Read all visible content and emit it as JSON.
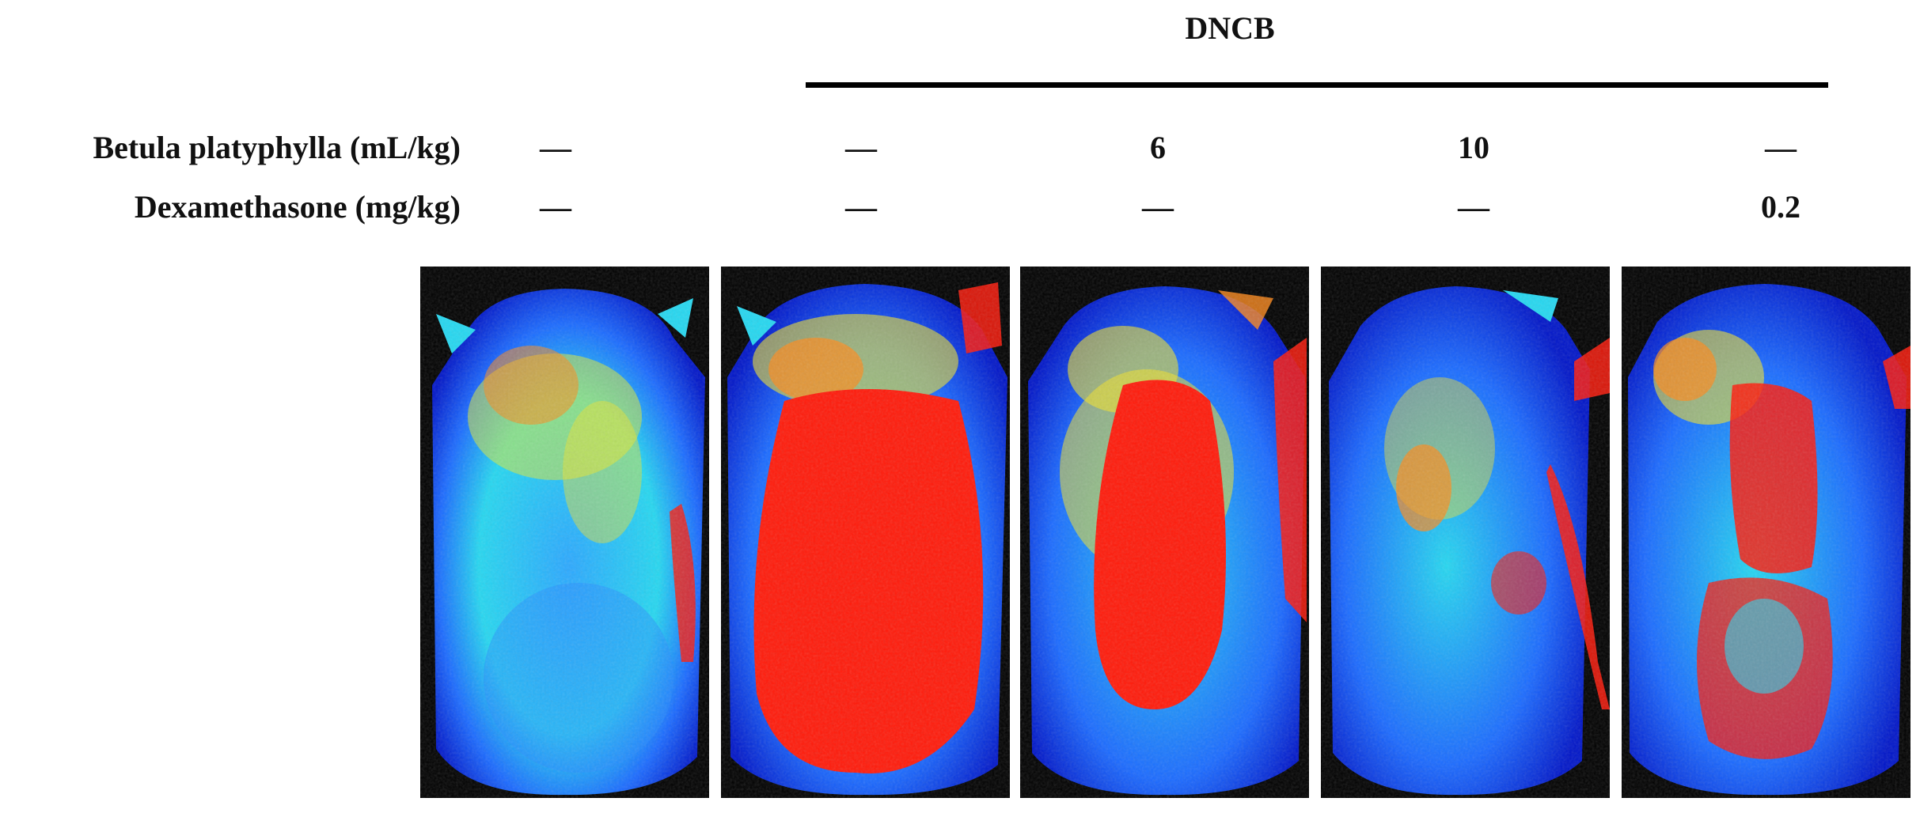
{
  "header": {
    "group_label": "DNCB"
  },
  "rows": [
    {
      "label": "Betula platyphylla (mL/kg)",
      "values": [
        "—",
        "—",
        "6",
        "10",
        "—"
      ]
    },
    {
      "label": "Dexamethasone (mg/kg)",
      "values": [
        "—",
        "—",
        "—",
        "—",
        "0.2"
      ]
    }
  ],
  "panels": [
    {
      "colormap": "jet",
      "red_intensity": 0.25
    },
    {
      "colormap": "jet",
      "red_intensity": 0.95
    },
    {
      "colormap": "jet",
      "red_intensity": 0.65
    },
    {
      "colormap": "jet",
      "red_intensity": 0.35
    },
    {
      "colormap": "jet",
      "red_intensity": 0.6
    }
  ],
  "colors": {
    "background": "#000000",
    "dark_blue": "#0015c8",
    "blue": "#1a6aff",
    "cyan": "#25d7f0",
    "yellow": "#f2e22a",
    "orange": "#ff8a1a",
    "red": "#ff1a0a"
  }
}
